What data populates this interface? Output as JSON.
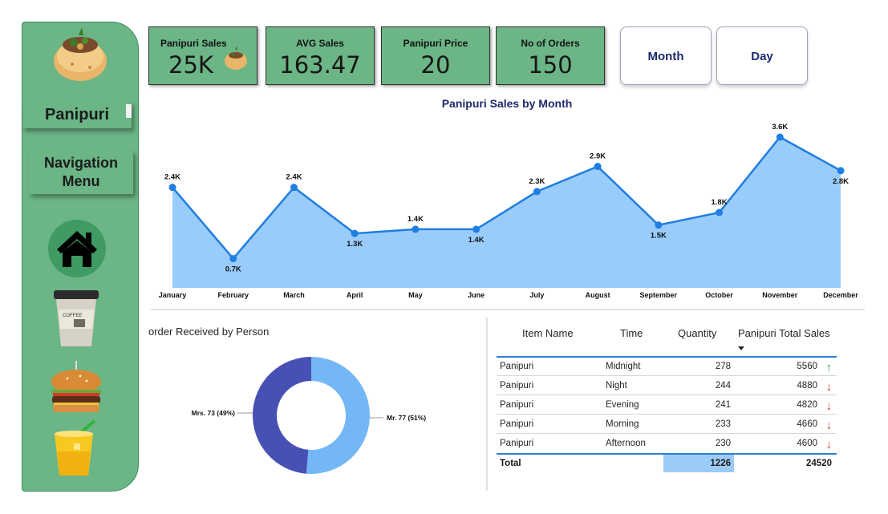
{
  "sidebar": {
    "title": "Panipuri",
    "nav_label": "Navigation Menu",
    "icons": [
      "panipuri-image",
      "home-icon",
      "coffee-cup-icon",
      "burger-icon",
      "juice-glass-icon"
    ]
  },
  "kpis": [
    {
      "label": "Panipuri Sales",
      "value": "25K"
    },
    {
      "label": "AVG Sales",
      "value": "163.47"
    },
    {
      "label": "Panipuri Price",
      "value": "20"
    },
    {
      "label": "No of Orders",
      "value": "150"
    }
  ],
  "slicers": {
    "month": "Month",
    "day": "Day"
  },
  "line_chart": {
    "title": "Panipuri Sales by Month",
    "fill_color": "#99ccfa",
    "line_color": "#1f7ee0"
  },
  "donut": {
    "title": "order Received by Person",
    "colors": {
      "mr": "#74b7f7",
      "mrs": "#4651b3"
    }
  },
  "table": {
    "headers": {
      "item": "Item Name",
      "time": "Time",
      "qty": "Quantity",
      "sales": "Panipuri Total Sales"
    },
    "rows": [
      {
        "item": "Panipuri",
        "time": "Midnight",
        "qty": "278",
        "sales": "5560",
        "trend": "up"
      },
      {
        "item": "Panipuri",
        "time": "Night",
        "qty": "244",
        "sales": "4880",
        "trend": "down"
      },
      {
        "item": "Panipuri",
        "time": "Evening",
        "qty": "241",
        "sales": "4820",
        "trend": "down"
      },
      {
        "item": "Panipuri",
        "time": "Morning",
        "qty": "233",
        "sales": "4660",
        "trend": "down"
      },
      {
        "item": "Panipuri",
        "time": "Afternoon",
        "qty": "230",
        "sales": "4600",
        "trend": "down"
      }
    ],
    "total": {
      "label": "Total",
      "qty": "1226",
      "sales": "24520"
    },
    "colors": {
      "up": "#3a9a4a",
      "down": "#d0342c"
    }
  },
  "chart_data": [
    {
      "type": "area",
      "title": "Panipuri Sales by Month",
      "categories": [
        "January",
        "February",
        "March",
        "April",
        "May",
        "June",
        "July",
        "August",
        "September",
        "October",
        "November",
        "December"
      ],
      "values": [
        2.4,
        0.7,
        2.4,
        1.3,
        1.4,
        1.4,
        2.3,
        2.9,
        1.5,
        1.8,
        3.6,
        2.8
      ],
      "labels": [
        "2.4K",
        "0.7K",
        "2.4K",
        "1.3K",
        "1.4K",
        "1.4K",
        "2.3K",
        "2.9K",
        "1.5K",
        "1.8K",
        "3.6K",
        "2.8K"
      ],
      "unit": "K",
      "grid": false
    },
    {
      "type": "pie",
      "title": "order Received by Person",
      "categories": [
        "Mr.",
        "Mrs."
      ],
      "values": [
        77,
        73
      ],
      "labels": [
        "Mr. 77 (51%)",
        "Mrs. 73 (49%)"
      ],
      "donut": true
    }
  ]
}
